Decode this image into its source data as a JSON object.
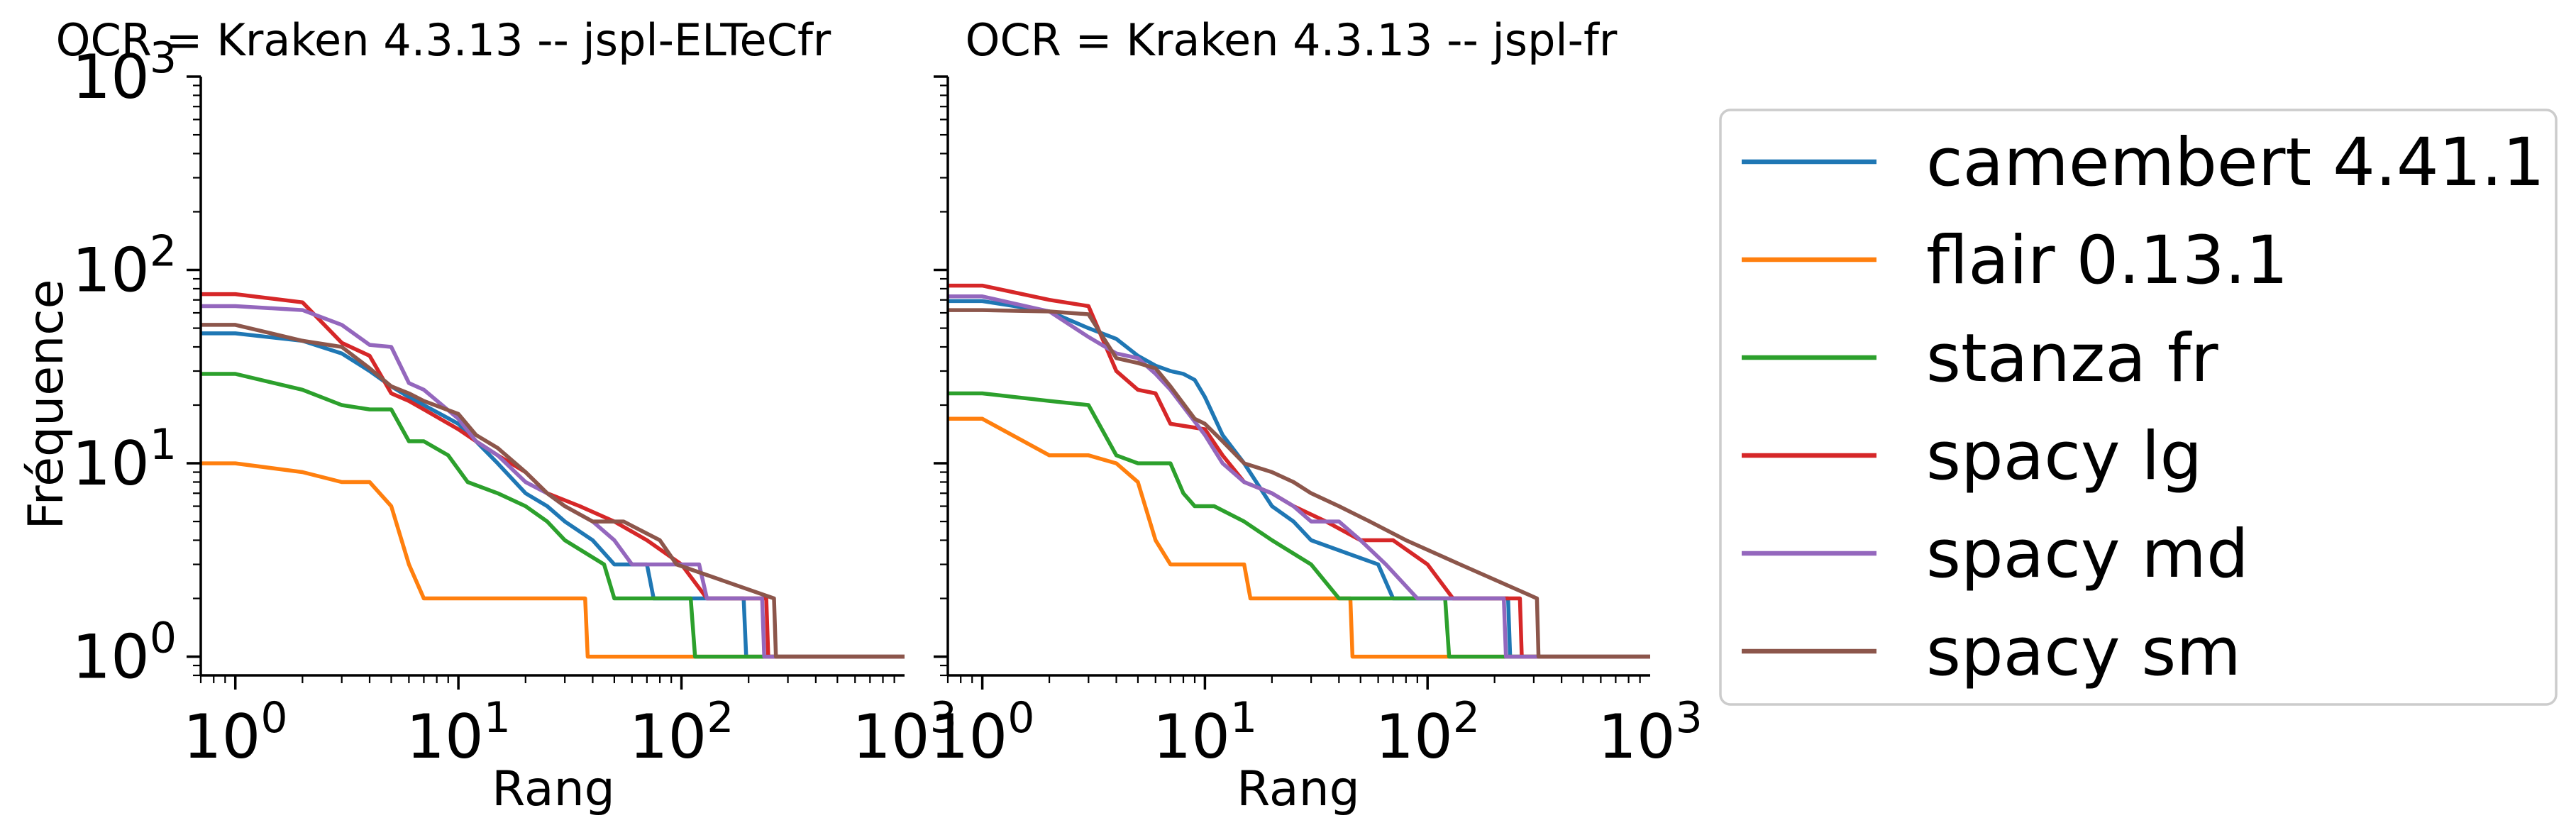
{
  "chart_data": [
    {
      "type": "line",
      "title": "OCR = Kraken 4.3.13 -- jspl-ELTeCfr",
      "xlabel": "Rang",
      "ylabel": "Fréquence",
      "xscale": "log",
      "yscale": "log",
      "xlim": [
        0.7,
        1000
      ],
      "ylim": [
        0.8,
        1000
      ],
      "xticks": [
        "10^0",
        "10^1",
        "10^2",
        "10^3"
      ],
      "yticks": [
        "10^0",
        "10^1",
        "10^2",
        "10^3"
      ],
      "grid": false,
      "series": [
        {
          "name": "camembert 4.41.1",
          "x": [
            0.7,
            1,
            2,
            3,
            4,
            5,
            6,
            7,
            10,
            12,
            15,
            20,
            25,
            30,
            40,
            50,
            70,
            75,
            190,
            195,
            1000
          ],
          "y": [
            47,
            47,
            43,
            37,
            30,
            25,
            22,
            20,
            16,
            13,
            10,
            7,
            6,
            5,
            4,
            3,
            3,
            2,
            2,
            1,
            1
          ]
        },
        {
          "name": "flair 0.13.1",
          "x": [
            0.7,
            1,
            2,
            3,
            4,
            5,
            6,
            7,
            37,
            38,
            1000
          ],
          "y": [
            10,
            10,
            9,
            8,
            8,
            6,
            3,
            2,
            2,
            1,
            1
          ]
        },
        {
          "name": "stanza fr",
          "x": [
            0.7,
            1,
            2,
            3,
            4,
            5,
            6,
            7,
            9,
            11,
            15,
            20,
            25,
            30,
            45,
            50,
            110,
            115,
            1000
          ],
          "y": [
            29,
            29,
            24,
            20,
            19,
            19,
            13,
            13,
            11,
            8,
            7,
            6,
            5,
            4,
            3,
            2,
            2,
            1,
            1
          ]
        },
        {
          "name": "spacy lg",
          "x": [
            0.7,
            1,
            2,
            3,
            4,
            5,
            6,
            7,
            10,
            12,
            15,
            20,
            25,
            35,
            50,
            70,
            100,
            130,
            240,
            245,
            1000
          ],
          "y": [
            75,
            75,
            68,
            42,
            36,
            23,
            21,
            19,
            15,
            13,
            11,
            9,
            7,
            6,
            5,
            4,
            3,
            2,
            2,
            1,
            1
          ]
        },
        {
          "name": "spacy md",
          "x": [
            0.7,
            1,
            2,
            3,
            4,
            5,
            6,
            7,
            10,
            12,
            15,
            20,
            25,
            30,
            40,
            50,
            60,
            120,
            130,
            230,
            235,
            1000
          ],
          "y": [
            65,
            65,
            62,
            52,
            41,
            40,
            26,
            24,
            17,
            13,
            11,
            8,
            7,
            6,
            5,
            4,
            3,
            3,
            2,
            2,
            1,
            1
          ]
        },
        {
          "name": "spacy sm",
          "x": [
            0.7,
            1,
            2,
            3,
            4,
            5,
            6,
            7,
            10,
            12,
            15,
            20,
            25,
            30,
            40,
            55,
            80,
            95,
            260,
            265,
            1000
          ],
          "y": [
            52,
            52,
            43,
            40,
            31,
            25,
            23,
            21,
            18,
            14,
            12,
            9,
            7,
            6,
            5,
            5,
            4,
            3,
            2,
            1,
            1
          ]
        }
      ]
    },
    {
      "type": "line",
      "title": "OCR = Kraken 4.3.13 -- jspl-fr",
      "xlabel": "Rang",
      "ylabel": "",
      "xscale": "log",
      "yscale": "log",
      "xlim": [
        0.7,
        1000
      ],
      "ylim": [
        0.8,
        1000
      ],
      "xticks": [
        "10^0",
        "10^1",
        "10^2",
        "10^3"
      ],
      "grid": false,
      "series": [
        {
          "name": "camembert 4.41.1",
          "x": [
            0.7,
            1,
            2,
            3,
            4,
            5,
            6,
            7,
            8,
            9,
            10,
            12,
            15,
            20,
            25,
            30,
            60,
            70,
            230,
            235,
            1000
          ],
          "y": [
            69,
            69,
            61,
            50,
            44,
            36,
            32,
            30,
            29,
            27,
            22,
            14,
            10,
            6,
            5,
            4,
            3,
            2,
            2,
            1,
            1
          ]
        },
        {
          "name": "flair 0.13.1",
          "x": [
            0.7,
            1,
            2,
            3,
            4,
            5,
            6,
            7,
            8,
            15,
            16,
            45,
            46,
            1000
          ],
          "y": [
            17,
            17,
            11,
            11,
            10,
            8,
            4,
            3,
            3,
            3,
            2,
            2,
            1,
            1
          ]
        },
        {
          "name": "stanza fr",
          "x": [
            0.7,
            1,
            2,
            3,
            4,
            5,
            6,
            7,
            8,
            9,
            11,
            15,
            20,
            30,
            40,
            120,
            125,
            1000
          ],
          "y": [
            23,
            23,
            21,
            20,
            11,
            10,
            10,
            10,
            7,
            6,
            6,
            5,
            4,
            3,
            2,
            2,
            1,
            1
          ]
        },
        {
          "name": "spacy lg",
          "x": [
            0.7,
            1,
            2,
            3,
            4,
            5,
            6,
            7,
            10,
            12,
            15,
            20,
            25,
            35,
            50,
            70,
            100,
            130,
            260,
            265,
            1000
          ],
          "y": [
            83,
            83,
            70,
            65,
            30,
            24,
            23,
            16,
            15,
            11,
            8,
            7,
            6,
            5,
            4,
            4,
            3,
            2,
            2,
            1,
            1
          ]
        },
        {
          "name": "spacy md",
          "x": [
            0.7,
            1,
            2,
            3,
            4,
            5,
            6,
            7,
            10,
            12,
            15,
            20,
            25,
            30,
            40,
            50,
            65,
            90,
            220,
            225,
            1000
          ],
          "y": [
            73,
            73,
            61,
            45,
            37,
            35,
            29,
            24,
            14,
            10,
            8,
            7,
            6,
            5,
            5,
            4,
            3,
            2,
            2,
            1,
            1
          ]
        },
        {
          "name": "spacy sm",
          "x": [
            0.7,
            1,
            2,
            3,
            4,
            5,
            6,
            7,
            9,
            10,
            12,
            15,
            20,
            25,
            30,
            40,
            55,
            80,
            140,
            310,
            315,
            1000
          ],
          "y": [
            62,
            62,
            61,
            59,
            35,
            33,
            31,
            25,
            17,
            16,
            13,
            10,
            9,
            8,
            7,
            6,
            5,
            4,
            3,
            2,
            1,
            1
          ]
        }
      ]
    }
  ],
  "legend": {
    "placement": "right",
    "entries": [
      "camembert 4.41.1",
      "flair 0.13.1",
      "stanza fr",
      "spacy lg",
      "spacy md",
      "spacy sm"
    ]
  },
  "colors": {
    "camembert 4.41.1": "#1f77b4",
    "flair 0.13.1": "#ff7f0e",
    "stanza fr": "#2ca02c",
    "spacy lg": "#d62728",
    "spacy md": "#9467bd",
    "spacy sm": "#8c564b"
  }
}
